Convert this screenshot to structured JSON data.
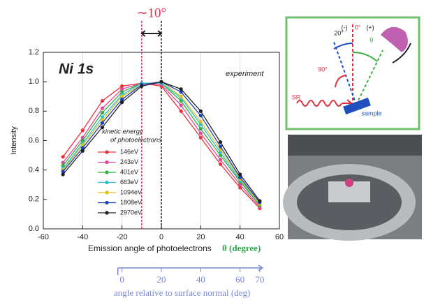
{
  "chart_data": {
    "type": "line",
    "title": "Ni 1s",
    "annotation": "experiment",
    "offset_label": "∼10°",
    "vlines": [
      -10,
      0
    ],
    "ylabel": "Intensity",
    "xlabel": "Emission angle of photoelectrons",
    "xlabel_symbol": "θ (degree)",
    "legend_title": [
      "kinetic energy",
      "of photoelectrons"
    ],
    "x": [
      -50,
      -40,
      -30,
      -20,
      -10,
      0,
      10,
      20,
      30,
      40,
      50
    ],
    "series": [
      {
        "name": "146eV",
        "color": "#e8303a",
        "values": [
          0.49,
          0.67,
          0.87,
          0.97,
          0.99,
          0.97,
          0.8,
          0.62,
          0.44,
          0.28,
          0.14
        ]
      },
      {
        "name": "243eV",
        "color": "#e0489a",
        "values": [
          0.45,
          0.62,
          0.82,
          0.95,
          0.99,
          0.98,
          0.84,
          0.65,
          0.47,
          0.3,
          0.15
        ]
      },
      {
        "name": "401eV",
        "color": "#30b040",
        "values": [
          0.43,
          0.6,
          0.79,
          0.93,
          0.99,
          0.99,
          0.87,
          0.68,
          0.5,
          0.32,
          0.16
        ]
      },
      {
        "name": "663eV",
        "color": "#30c0d0",
        "values": [
          0.41,
          0.58,
          0.76,
          0.91,
          0.99,
          0.99,
          0.89,
          0.71,
          0.52,
          0.33,
          0.17
        ]
      },
      {
        "name": "1094eV",
        "color": "#e0c020",
        "values": [
          0.4,
          0.57,
          0.74,
          0.9,
          0.98,
          1.0,
          0.9,
          0.73,
          0.54,
          0.34,
          0.17
        ]
      },
      {
        "name": "1808eV",
        "color": "#2040c0",
        "values": [
          0.39,
          0.55,
          0.72,
          0.88,
          0.98,
          1.0,
          0.93,
          0.77,
          0.56,
          0.35,
          0.18
        ]
      },
      {
        "name": "2970eV",
        "color": "#202020",
        "values": [
          0.37,
          0.53,
          0.69,
          0.86,
          0.97,
          1.0,
          0.95,
          0.8,
          0.59,
          0.37,
          0.19
        ]
      }
    ],
    "xlim": [
      -60,
      60
    ],
    "xticks": [
      -60,
      -40,
      -20,
      0,
      20,
      40,
      60
    ],
    "ylim": [
      0,
      1.2
    ],
    "yticks": [
      {
        "value": 0,
        "label": "0.0"
      },
      0.2,
      0.4,
      0.6,
      0.8,
      {
        "value": 1,
        "label": "1.0"
      },
      1.2
    ],
    "grid": "x",
    "x2lim": [
      -40,
      80
    ],
    "x2ticks": [
      0,
      20,
      40,
      60,
      70
    ],
    "x2label": "angle relative to surface normal (deg)"
  },
  "diagram": {
    "labels": [
      "(-)",
      "0°",
      "(+)",
      "20°",
      "θ",
      "90°",
      "SR",
      "sample"
    ]
  }
}
